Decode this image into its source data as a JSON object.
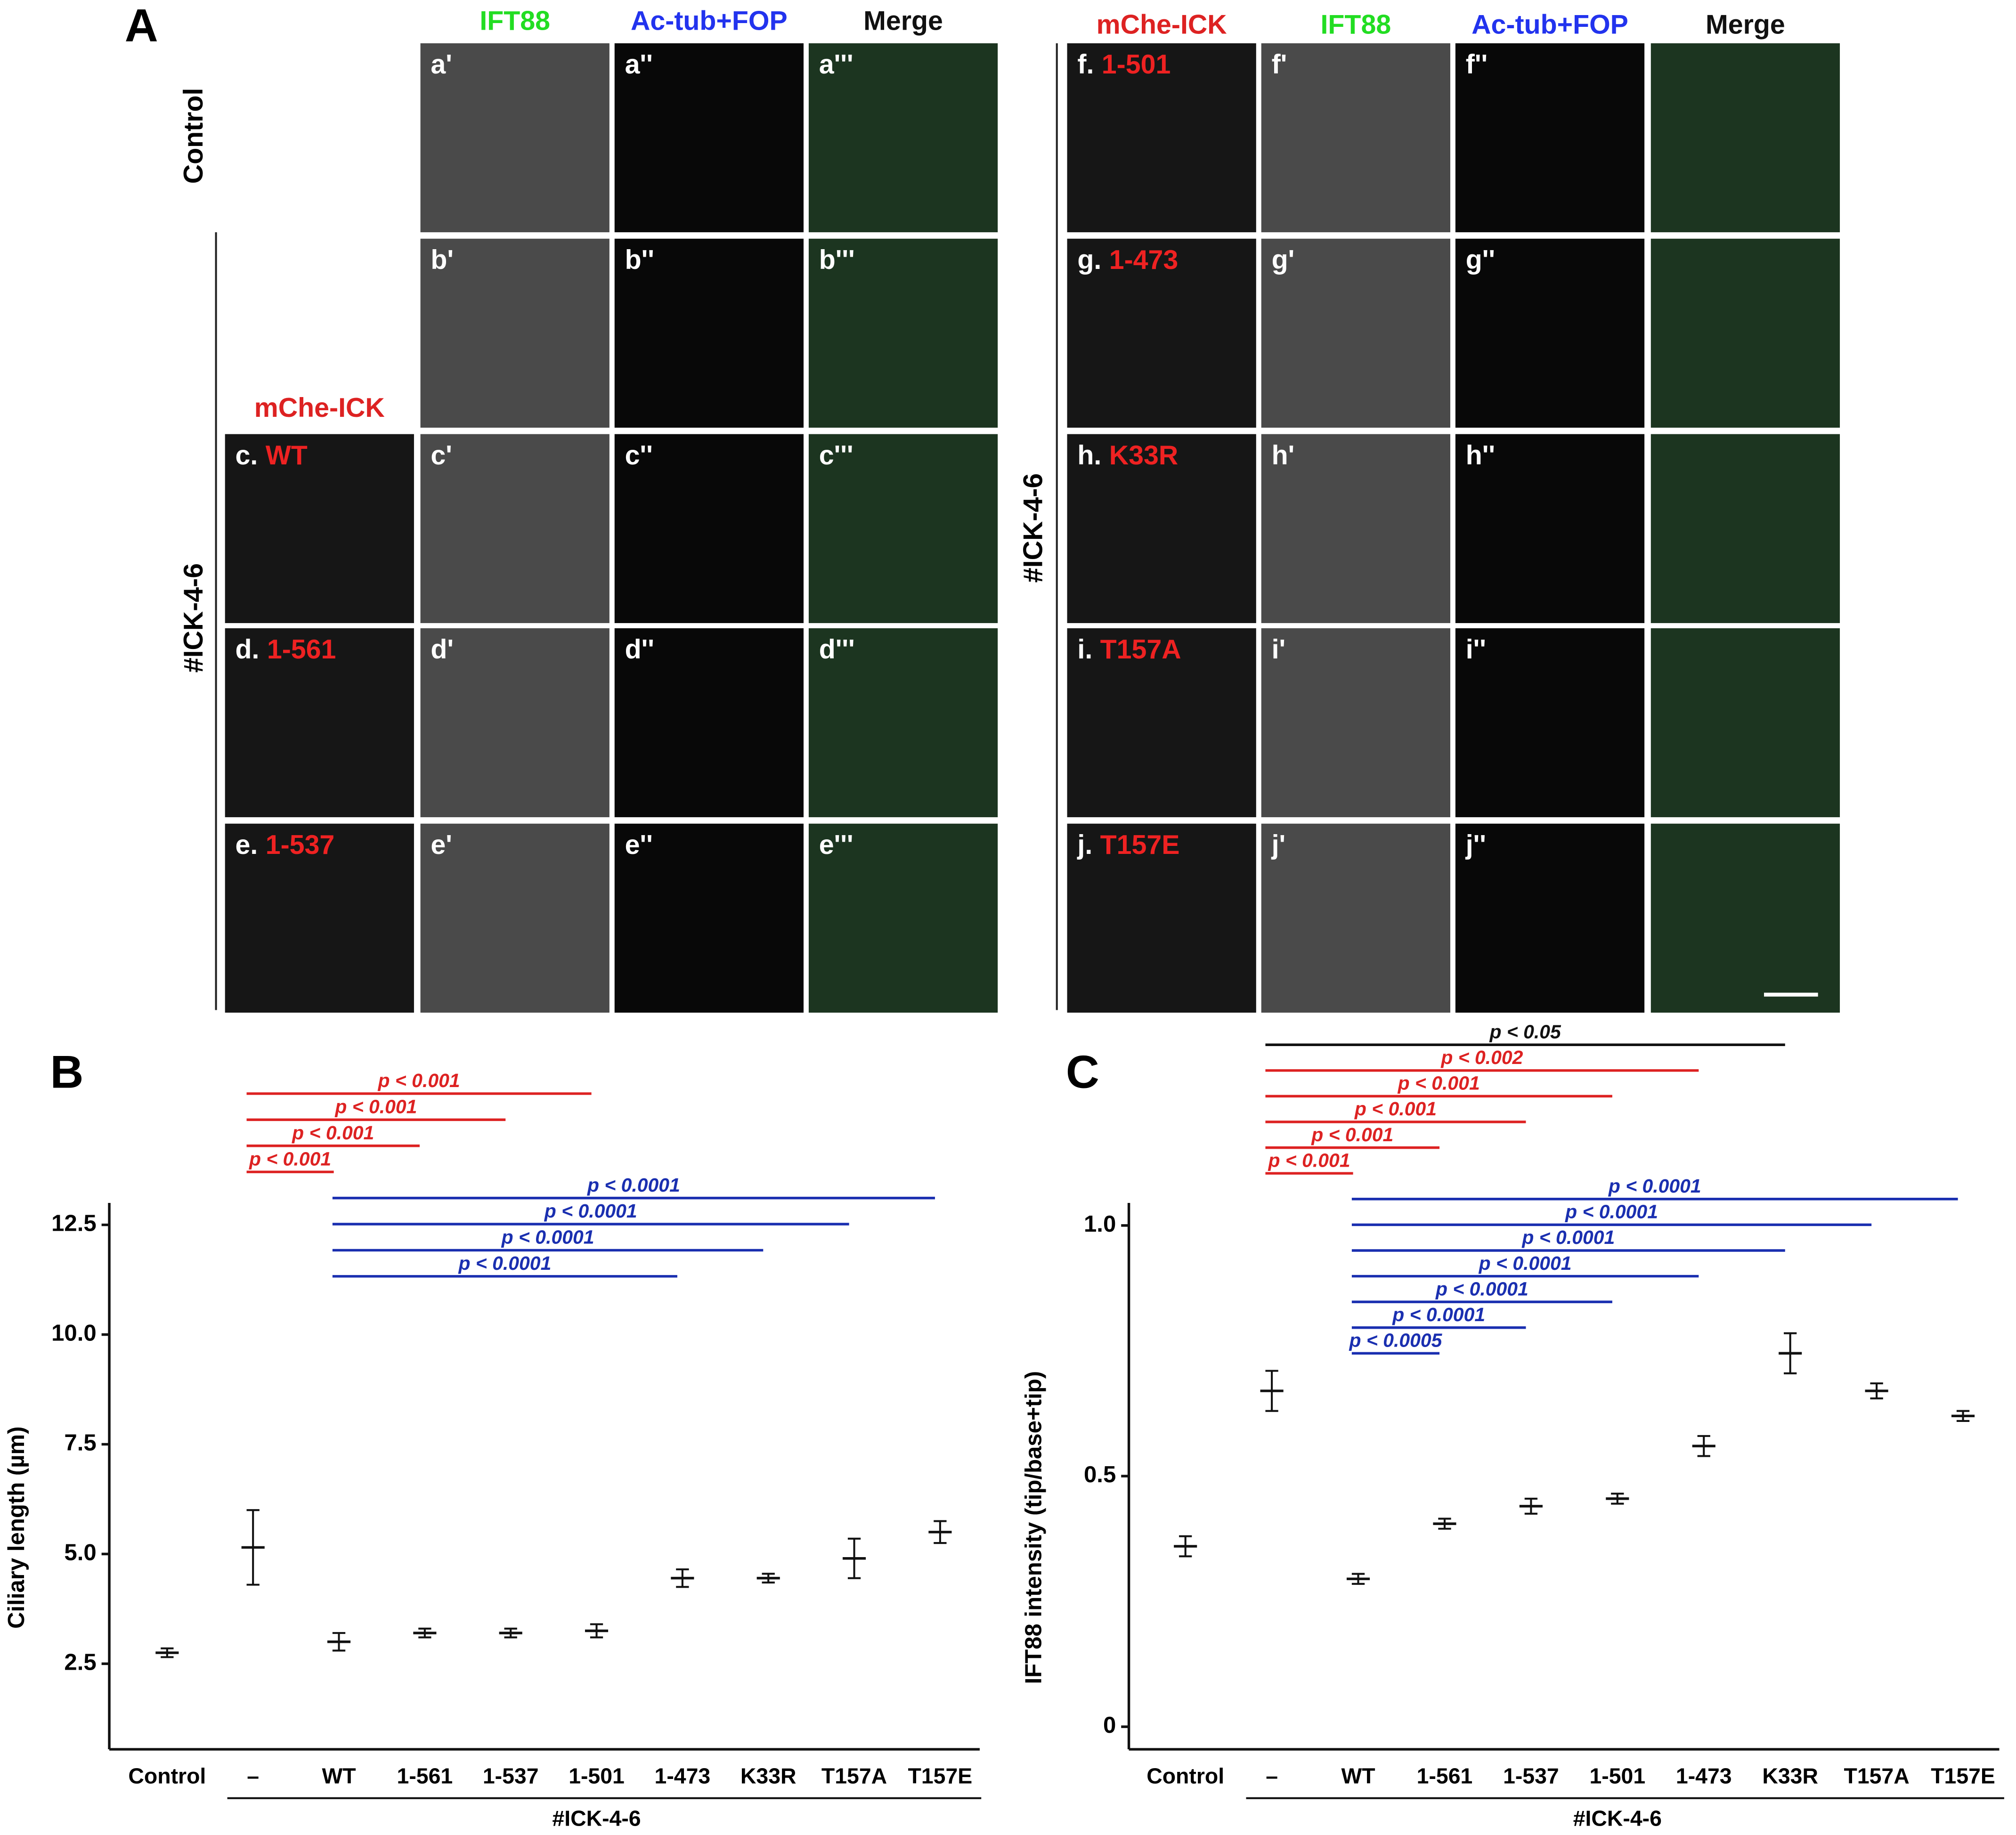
{
  "figure_a": {
    "label": "A",
    "left": {
      "headers": [
        "IFT88",
        "Ac-tub+FOP",
        "Merge"
      ],
      "header_colors": [
        "#22dd22",
        "#2233ee",
        "#111111"
      ],
      "construct_header": "mChe-ICK",
      "group_labels": [
        "Control",
        "#ICK-4-6"
      ],
      "rows": [
        {
          "images": [
            "a'",
            "a''",
            "a'''"
          ]
        },
        {
          "images": [
            "b'",
            "b''",
            "b'''"
          ]
        },
        {
          "construct": {
            "prefix": "c.",
            "name": "WT"
          },
          "images": [
            "c'",
            "c''",
            "c'''"
          ]
        },
        {
          "construct": {
            "prefix": "d.",
            "name": "1-561"
          },
          "images": [
            "d'",
            "d''",
            "d'''"
          ]
        },
        {
          "construct": {
            "prefix": "e.",
            "name": "1-537"
          },
          "images": [
            "e'",
            "e''",
            "e'''"
          ]
        }
      ]
    },
    "right": {
      "headers": [
        "mChe-ICK",
        "IFT88",
        "Ac-tub+FOP",
        "Merge"
      ],
      "header_colors": [
        "#dd2222",
        "#22dd22",
        "#2233ee",
        "#111111"
      ],
      "group_label": "#ICK-4-6",
      "rows": [
        {
          "construct": {
            "prefix": "f.",
            "name": "1-501"
          },
          "images": [
            "f'",
            "f''"
          ]
        },
        {
          "construct": {
            "prefix": "g.",
            "name": "1-473"
          },
          "images": [
            "g'",
            "g''"
          ]
        },
        {
          "construct": {
            "prefix": "h.",
            "name": "K33R"
          },
          "images": [
            "h'",
            "h''"
          ]
        },
        {
          "construct": {
            "prefix": "i.",
            "name": "T157A"
          },
          "images": [
            "i'",
            "i''"
          ]
        },
        {
          "construct": {
            "prefix": "j.",
            "name": "T157E"
          },
          "images": [
            "j'",
            "j''"
          ]
        }
      ]
    }
  },
  "chart_data": [
    {
      "type": "dot",
      "label": "B",
      "y_label": "Ciliary length (µm)",
      "categories": [
        "Control",
        "–",
        "WT",
        "1-561",
        "1-537",
        "1-501",
        "1-473",
        "K33R",
        "T157A",
        "T157E"
      ],
      "group_label": "#ICK-4-6",
      "values": [
        2.75,
        5.15,
        3.0,
        3.2,
        3.2,
        3.25,
        4.45,
        4.45,
        4.9,
        5.5
      ],
      "errors": [
        0.1,
        0.85,
        0.2,
        0.1,
        0.1,
        0.15,
        0.2,
        0.1,
        0.45,
        0.25
      ],
      "ylim": [
        0.55,
        13.0
      ],
      "yticks": [
        2.5,
        {
          "value": 5,
          "label": "5.0"
        },
        7.5,
        {
          "value": 10,
          "label": "10.0"
        },
        12.5
      ],
      "comparisons": [
        {
          "from": "–",
          "to": "1-501",
          "label": "p < 0.001",
          "color": "#dd2222"
        },
        {
          "from": "–",
          "to": "1-537",
          "label": "p < 0.001",
          "color": "#dd2222"
        },
        {
          "from": "–",
          "to": "1-561",
          "label": "p < 0.001",
          "color": "#dd2222"
        },
        {
          "from": "–",
          "to": "WT",
          "label": "p < 0.001",
          "color": "#dd2222"
        },
        {
          "from": "WT",
          "to": "T157E",
          "label": "p < 0.0001",
          "color": "#1a2fb0"
        },
        {
          "from": "WT",
          "to": "T157A",
          "label": "p < 0.0001",
          "color": "#1a2fb0"
        },
        {
          "from": "WT",
          "to": "K33R",
          "label": "p < 0.0001",
          "color": "#1a2fb0"
        },
        {
          "from": "WT",
          "to": "1-473",
          "label": "p < 0.0001",
          "color": "#1a2fb0"
        }
      ]
    },
    {
      "type": "dot",
      "label": "C",
      "y_label": "IFT88 intensity (tip/base+tip)",
      "categories": [
        "Control",
        "–",
        "WT",
        "1-561",
        "1-537",
        "1-501",
        "1-473",
        "K33R",
        "T157A",
        "T157E"
      ],
      "group_label": "#ICK-4-6",
      "values": [
        0.36,
        0.67,
        0.295,
        0.405,
        0.44,
        0.455,
        0.56,
        0.745,
        0.67,
        0.62
      ],
      "errors": [
        0.02,
        0.04,
        0.01,
        0.01,
        0.015,
        0.01,
        0.02,
        0.04,
        0.015,
        0.01
      ],
      "ylim": [
        -0.045,
        1.045
      ],
      "yticks": [
        0,
        0.5,
        {
          "value": 1,
          "label": "1.0"
        }
      ],
      "comparisons": [
        {
          "from": "–",
          "to": "K33R",
          "label": "p < 0.05",
          "color": "#111111"
        },
        {
          "from": "–",
          "to": "1-473",
          "label": "p < 0.002",
          "color": "#dd2222"
        },
        {
          "from": "–",
          "to": "1-501",
          "label": "p < 0.001",
          "color": "#dd2222"
        },
        {
          "from": "–",
          "to": "1-537",
          "label": "p < 0.001",
          "color": "#dd2222"
        },
        {
          "from": "–",
          "to": "1-561",
          "label": "p < 0.001",
          "color": "#dd2222"
        },
        {
          "from": "–",
          "to": "WT",
          "label": "p < 0.001",
          "color": "#dd2222"
        },
        {
          "from": "WT",
          "to": "T157E",
          "label": "p < 0.0001",
          "color": "#1a2fb0"
        },
        {
          "from": "WT",
          "to": "T157A",
          "label": "p < 0.0001",
          "color": "#1a2fb0"
        },
        {
          "from": "WT",
          "to": "K33R",
          "label": "p < 0.0001",
          "color": "#1a2fb0"
        },
        {
          "from": "WT",
          "to": "1-473",
          "label": "p < 0.0001",
          "color": "#1a2fb0"
        },
        {
          "from": "WT",
          "to": "1-501",
          "label": "p < 0.0001",
          "color": "#1a2fb0"
        },
        {
          "from": "WT",
          "to": "1-537",
          "label": "p < 0.0001",
          "color": "#1a2fb0"
        },
        {
          "from": "WT",
          "to": "1-561",
          "label": "p < 0.0005",
          "color": "#1a2fb0"
        }
      ]
    }
  ]
}
